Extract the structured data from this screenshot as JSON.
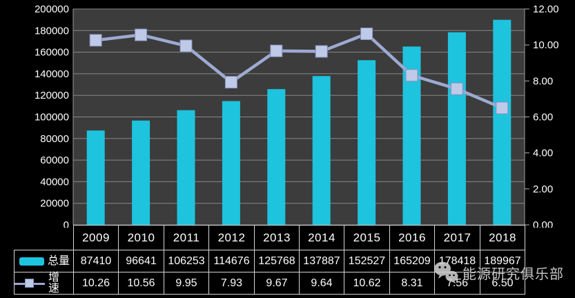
{
  "chart_data": {
    "type": "combo-bar-line",
    "categories": [
      "2009",
      "2010",
      "2011",
      "2012",
      "2013",
      "2014",
      "2015",
      "2016",
      "2017",
      "2018"
    ],
    "series": [
      {
        "name": "总量",
        "chart": "bar",
        "axis": "left",
        "values": [
          87410,
          96641,
          106253,
          114676,
          125768,
          137887,
          152527,
          165209,
          178418,
          189967
        ],
        "display": [
          "87410",
          "96641",
          "106253",
          "114676",
          "125768",
          "137887",
          "152527",
          "165209",
          "178418",
          "189967"
        ],
        "color": "#1ec3de"
      },
      {
        "name": "增速",
        "chart": "line",
        "axis": "right",
        "values": [
          10.26,
          10.56,
          9.95,
          7.93,
          9.67,
          9.64,
          10.62,
          8.31,
          7.56,
          6.5
        ],
        "display": [
          "10.26",
          "10.56",
          "9.95",
          "7.93",
          "9.67",
          "9.64",
          "10.62",
          "8.31",
          "7.56",
          "6.50"
        ],
        "color": "#9daad2",
        "marker": "square",
        "marker_color": "#bfcae8",
        "marker_stroke": "#8290bc"
      }
    ],
    "left_axis": {
      "min": 0,
      "max": 200000,
      "step": 20000,
      "tick_labels": [
        "0",
        "20000",
        "40000",
        "60000",
        "80000",
        "100000",
        "120000",
        "140000",
        "160000",
        "180000",
        "200000"
      ]
    },
    "right_axis": {
      "min": 0,
      "max": 12,
      "step": 2,
      "tick_labels": [
        "0.00",
        "2.00",
        "4.00",
        "6.00",
        "8.00",
        "10.00",
        "12.00"
      ]
    },
    "gridlines": "horizontal",
    "legend_position": "data-table-left",
    "colors": {
      "background": "#000000",
      "plot_background": "#3c3c3c",
      "gridline": "#878787",
      "axis_edge": "#9a9a9a",
      "axis_text": "#ffffff",
      "table_border": "#d6d6d6"
    }
  },
  "watermark": {
    "icon": "wechat-icon",
    "text": "能源研究俱乐部"
  }
}
